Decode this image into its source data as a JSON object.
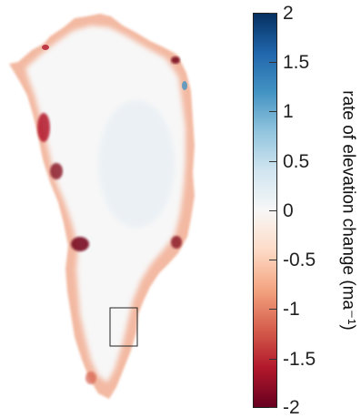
{
  "colorbar": {
    "label": "rate of elevation change (ma⁻¹)",
    "ticks": [
      "2",
      "1.5",
      "1",
      "0.5",
      "0",
      "-0.5",
      "-1",
      "-1.5",
      "-2"
    ],
    "range": [
      -2,
      2
    ],
    "colormap": [
      "#67001f",
      "#b2182b",
      "#d6604d",
      "#f4a582",
      "#fddbc7",
      "#f7f7f7",
      "#d1e5f0",
      "#92c5de",
      "#4393c3",
      "#2166ac",
      "#053061"
    ]
  },
  "map": {
    "region": "Greenland",
    "inset_box": true
  }
}
